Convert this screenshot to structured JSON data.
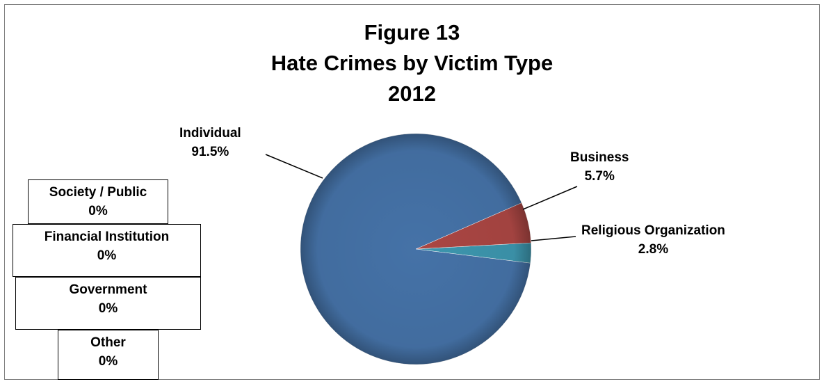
{
  "chart_data": {
    "type": "pie",
    "title": [
      "Figure 13",
      "Hate Crimes by Victim Type",
      "2012"
    ],
    "slices": [
      {
        "label": "Individual",
        "value": 91.5,
        "value_label": "91.5%",
        "color": "#4572a7"
      },
      {
        "label": "Business",
        "value": 5.7,
        "value_label": "5.7%",
        "color": "#aa4643"
      },
      {
        "label": "Religious Organization",
        "value": 2.8,
        "value_label": "2.8%",
        "color": "#3d96ae"
      }
    ],
    "zero_categories": [
      {
        "label": "Society / Public",
        "value_label": "0%"
      },
      {
        "label": "Financial Institution",
        "value_label": "0%"
      },
      {
        "label": "Government",
        "value_label": "0%"
      },
      {
        "label": "Other",
        "value_label": "0%"
      }
    ]
  }
}
